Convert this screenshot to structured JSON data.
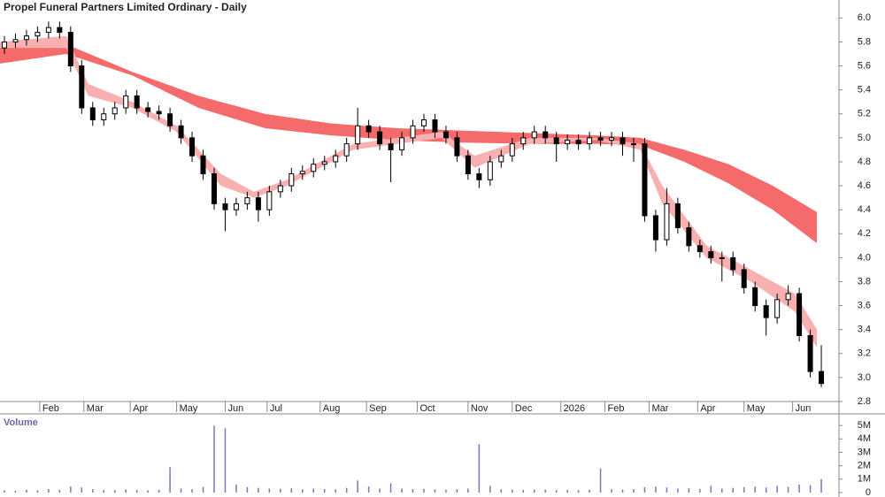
{
  "chart_data": [
    {
      "type": "candlestick",
      "title": "Propel Funeral Partners Limited Ordinary - Daily",
      "x": [
        2,
        7,
        12,
        17,
        22,
        27,
        32,
        37,
        42,
        47,
        52,
        57,
        62,
        67,
        72,
        77,
        82,
        87,
        92,
        97,
        102,
        107,
        112,
        117,
        122,
        127,
        132,
        137,
        142,
        147,
        152,
        157,
        162,
        167,
        172,
        177,
        182,
        187,
        192,
        197,
        202,
        207,
        212,
        217,
        222,
        227,
        232,
        237,
        242,
        247,
        252,
        257,
        262,
        267,
        272,
        277,
        282,
        287,
        292,
        297,
        302,
        307,
        312,
        317,
        322,
        327,
        332,
        337,
        342,
        347,
        352,
        357,
        362,
        367,
        372
      ],
      "open": [
        5.75,
        5.8,
        5.82,
        5.85,
        5.88,
        5.92,
        5.88,
        5.6,
        5.25,
        5.15,
        5.2,
        5.25,
        5.35,
        5.25,
        5.22,
        5.2,
        5.1,
        5.0,
        4.85,
        4.7,
        4.45,
        4.4,
        4.45,
        4.5,
        4.4,
        4.55,
        4.6,
        4.7,
        4.72,
        4.78,
        4.8,
        4.85,
        4.95,
        5.1,
        5.05,
        4.95,
        4.9,
        5.0,
        5.1,
        5.15,
        5.05,
        5.0,
        4.85,
        4.7,
        4.65,
        4.8,
        4.85,
        4.95,
        5.0,
        5.05,
        5.0,
        4.95,
        4.98,
        4.95,
        5.0,
        4.98,
        5.0,
        4.95,
        4.95,
        4.35,
        4.15,
        4.45,
        4.25,
        4.1,
        4.05,
        4.0,
        4.0,
        3.9,
        3.75,
        3.6,
        3.5,
        3.65,
        3.7,
        3.35,
        3.05
      ],
      "high": [
        5.85,
        5.87,
        5.9,
        5.93,
        5.97,
        5.97,
        5.93,
        5.65,
        5.3,
        5.25,
        5.3,
        5.4,
        5.4,
        5.3,
        5.27,
        5.25,
        5.15,
        5.05,
        4.9,
        4.75,
        4.5,
        4.5,
        4.55,
        4.55,
        4.6,
        4.65,
        4.75,
        4.77,
        4.83,
        4.85,
        4.9,
        5.0,
        5.25,
        5.15,
        5.1,
        5.0,
        5.05,
        5.15,
        5.2,
        5.2,
        5.1,
        5.05,
        4.9,
        4.75,
        4.85,
        4.9,
        5.0,
        5.05,
        5.1,
        5.1,
        5.05,
        5.03,
        5.03,
        5.05,
        5.05,
        5.05,
        5.05,
        5.0,
        5.0,
        4.4,
        4.58,
        4.5,
        4.3,
        4.15,
        4.1,
        4.05,
        4.05,
        3.95,
        3.8,
        3.65,
        3.7,
        3.77,
        3.75,
        3.4,
        3.27
      ],
      "low": [
        5.7,
        5.75,
        5.77,
        5.8,
        5.83,
        5.83,
        5.55,
        5.2,
        5.1,
        5.1,
        5.15,
        5.2,
        5.2,
        5.17,
        5.15,
        5.05,
        4.95,
        4.8,
        4.65,
        4.4,
        4.22,
        4.35,
        4.4,
        4.3,
        4.35,
        4.5,
        4.55,
        4.65,
        4.67,
        4.73,
        4.75,
        4.8,
        4.9,
        5.0,
        4.9,
        4.63,
        4.85,
        4.95,
        5.05,
        5.0,
        4.95,
        4.8,
        4.65,
        4.58,
        4.6,
        4.75,
        4.8,
        4.9,
        4.95,
        4.95,
        4.8,
        4.9,
        4.9,
        4.9,
        4.93,
        4.93,
        4.85,
        4.8,
        4.3,
        4.05,
        4.1,
        4.2,
        4.05,
        4.0,
        3.95,
        3.8,
        3.85,
        3.7,
        3.55,
        3.35,
        3.45,
        3.6,
        3.3,
        3.0,
        2.92
      ],
      "close": [
        5.8,
        5.82,
        5.85,
        5.88,
        5.92,
        5.88,
        5.6,
        5.25,
        5.15,
        5.2,
        5.25,
        5.35,
        5.25,
        5.22,
        5.2,
        5.1,
        5.0,
        4.85,
        4.7,
        4.45,
        4.4,
        4.45,
        4.5,
        4.4,
        4.55,
        4.6,
        4.7,
        4.72,
        4.78,
        4.8,
        4.85,
        4.95,
        5.1,
        5.05,
        4.95,
        4.9,
        5.0,
        5.1,
        5.15,
        5.05,
        5.0,
        4.85,
        4.7,
        4.65,
        4.8,
        4.85,
        4.95,
        5.0,
        5.05,
        5.0,
        4.95,
        4.98,
        4.95,
        5.0,
        4.98,
        5.0,
        4.95,
        4.95,
        4.35,
        4.15,
        4.45,
        4.25,
        4.1,
        4.05,
        4.0,
        4.0,
        3.9,
        3.75,
        3.6,
        3.5,
        3.65,
        3.7,
        3.35,
        3.05,
        2.95
      ],
      "color": "#000000",
      "bands": [
        {
          "color": "#f56b6b",
          "x": [
            0,
            30,
            60,
            90,
            120,
            150,
            180,
            210,
            240,
            270,
            290,
            310,
            330,
            350,
            370
          ],
          "upper": [
            5.75,
            5.78,
            5.55,
            5.35,
            5.2,
            5.12,
            5.08,
            5.06,
            5.04,
            5.02,
            5.0,
            4.9,
            4.78,
            4.6,
            4.38
          ],
          "lower": [
            5.62,
            5.7,
            5.52,
            5.25,
            5.08,
            5.02,
            4.98,
            4.96,
            4.95,
            4.95,
            4.94,
            4.8,
            4.62,
            4.4,
            4.12
          ]
        },
        {
          "color": "#f9b0b0",
          "x": [
            0,
            30,
            40,
            60,
            80,
            100,
            115,
            130,
            160,
            180,
            200,
            215,
            240,
            270,
            290,
            300,
            320,
            340,
            360,
            370
          ],
          "upper": [
            5.8,
            5.85,
            5.45,
            5.3,
            5.1,
            4.7,
            4.55,
            4.65,
            4.95,
            5.0,
            5.05,
            4.85,
            5.0,
            5.0,
            4.95,
            4.6,
            4.1,
            3.9,
            3.7,
            3.4
          ],
          "lower": [
            5.75,
            5.75,
            5.35,
            5.25,
            5.05,
            4.6,
            4.5,
            4.6,
            4.9,
            4.95,
            5.0,
            4.75,
            4.95,
            4.98,
            4.9,
            4.45,
            4.0,
            3.8,
            3.55,
            3.25
          ]
        }
      ],
      "xlim": [
        0,
        380
      ],
      "xticks": [
        {
          "value": 18,
          "label": "Feb"
        },
        {
          "value": 38,
          "label": "Mar"
        },
        {
          "value": 59,
          "label": "Apr"
        },
        {
          "value": 80,
          "label": "May"
        },
        {
          "value": 102,
          "label": "Jun"
        },
        {
          "value": 121,
          "label": "Jul"
        },
        {
          "value": 145,
          "label": "Aug"
        },
        {
          "value": 166,
          "label": "Sep"
        },
        {
          "value": 189,
          "label": "Oct"
        },
        {
          "value": 212,
          "label": "Nov"
        },
        {
          "value": 232,
          "label": "Dec"
        },
        {
          "value": 254,
          "label": "2026"
        },
        {
          "value": 274,
          "label": "Feb"
        },
        {
          "value": 294,
          "label": "Mar"
        },
        {
          "value": 316,
          "label": "Apr"
        },
        {
          "value": 337,
          "label": "May"
        },
        {
          "value": 359,
          "label": "Jun"
        }
      ],
      "ylim": [
        2.8,
        6.15
      ],
      "yticks": [
        2.8,
        {
          "value": 3,
          "label": "3.0"
        },
        3.2,
        3.4,
        3.6,
        3.8,
        {
          "value": 4,
          "label": "4.0"
        },
        4.2,
        4.4,
        4.6,
        4.8,
        {
          "value": 5,
          "label": "5.0"
        },
        5.2,
        5.4,
        5.6,
        5.8,
        {
          "value": 6,
          "label": "6.0"
        }
      ]
    },
    {
      "type": "bar",
      "title": "Volume",
      "x": [
        2,
        7,
        12,
        17,
        22,
        27,
        32,
        37,
        42,
        47,
        52,
        57,
        62,
        67,
        72,
        77,
        82,
        87,
        92,
        97,
        102,
        107,
        112,
        117,
        122,
        127,
        132,
        137,
        142,
        147,
        152,
        157,
        162,
        167,
        172,
        177,
        182,
        187,
        192,
        197,
        202,
        207,
        212,
        217,
        222,
        227,
        232,
        237,
        242,
        247,
        252,
        257,
        262,
        267,
        272,
        277,
        282,
        287,
        292,
        297,
        302,
        307,
        312,
        317,
        322,
        327,
        332,
        337,
        342,
        347,
        352,
        357,
        362,
        367,
        372
      ],
      "values": [
        180000,
        150000,
        220000,
        170000,
        260000,
        200000,
        450000,
        380000,
        250000,
        200000,
        180000,
        230000,
        190000,
        170000,
        210000,
        1900000,
        300000,
        250000,
        420000,
        5000000,
        4800000,
        600000,
        400000,
        350000,
        300000,
        280000,
        320000,
        250000,
        300000,
        260000,
        240000,
        350000,
        900000,
        450000,
        300000,
        700000,
        300000,
        260000,
        280000,
        240000,
        220000,
        260000,
        300000,
        3600000,
        500000,
        250000,
        220000,
        200000,
        230000,
        210000,
        190000,
        200000,
        180000,
        220000,
        1800000,
        250000,
        230000,
        260000,
        400000,
        450000,
        380000,
        300000,
        320000,
        280000,
        500000,
        300000,
        350000,
        400000,
        450000,
        380000,
        500000,
        420000,
        600000,
        550000,
        1000000
      ],
      "color": "#7777bb",
      "xlim": [
        0,
        380
      ],
      "ylim": [
        0,
        5800000
      ],
      "yticks": [
        0,
        {
          "value": 1000000,
          "label": "1M"
        },
        {
          "value": 2000000,
          "label": "2M"
        },
        {
          "value": 3000000,
          "label": "3M"
        },
        {
          "value": 4000000,
          "label": "4M"
        },
        {
          "value": 5000000,
          "label": "5M"
        }
      ]
    }
  ]
}
